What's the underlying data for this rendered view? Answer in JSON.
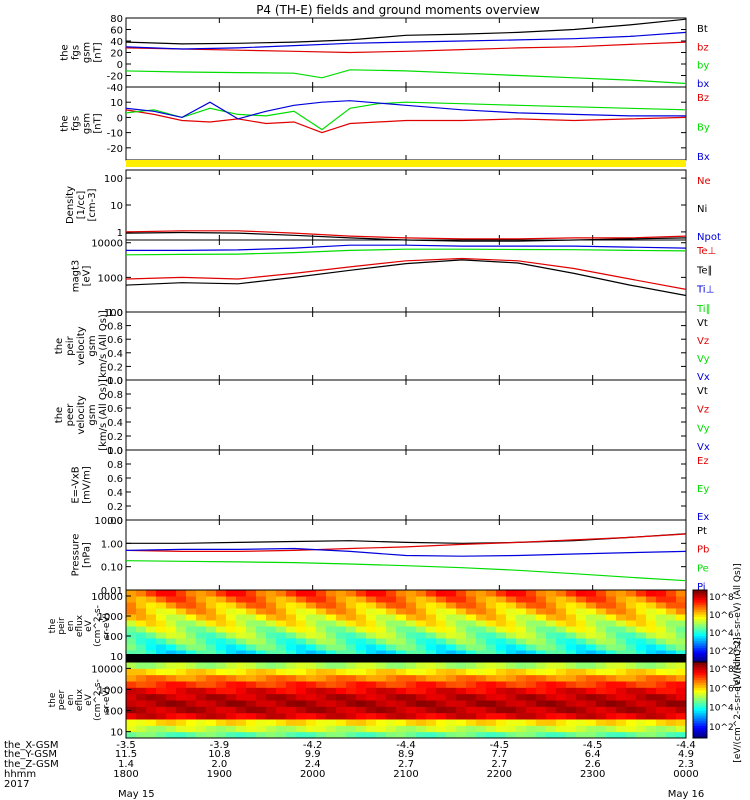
{
  "title": "P4 (TH-E) fields and ground moments overview",
  "colors": {
    "black": "#000000",
    "red": "#e00000",
    "green": "#00dd00",
    "blue": "#0000dd",
    "yellow": "#ffee00"
  },
  "chart_data": {
    "type": "line",
    "x_ticks": [
      "1800",
      "1900",
      "2000",
      "2100",
      "2200",
      "2300",
      "0000"
    ],
    "panels": [
      {
        "id": "fgs-gsm",
        "ylabel": [
          "the",
          "fgs",
          "gsm",
          "[nT]"
        ],
        "yscale": "linear",
        "ylim": [
          -40,
          80
        ],
        "yticks": [
          "80",
          "60",
          "40",
          "20",
          "0",
          "-20",
          "-40"
        ],
        "legend": [
          "Bt",
          "bz",
          "by",
          "bx"
        ],
        "legend_colors": [
          "black",
          "red",
          "green",
          "blue"
        ],
        "series": [
          {
            "name": "Bt",
            "color": "black",
            "x": [
              0,
              0.1,
              0.2,
              0.3,
              0.4,
              0.5,
              0.6,
              0.7,
              0.8,
              0.9,
              1
            ],
            "y": [
              38,
              35,
              36,
              38,
              42,
              50,
              52,
              55,
              60,
              68,
              78
            ]
          },
          {
            "name": "bz",
            "color": "red",
            "x": [
              0,
              0.1,
              0.2,
              0.3,
              0.4,
              0.5,
              0.6,
              0.7,
              0.8,
              0.9,
              1
            ],
            "y": [
              28,
              26,
              24,
              22,
              20,
              22,
              25,
              28,
              30,
              34,
              38
            ]
          },
          {
            "name": "by",
            "color": "green",
            "x": [
              0,
              0.1,
              0.2,
              0.3,
              0.35,
              0.4,
              0.5,
              0.6,
              0.7,
              0.8,
              0.9,
              1
            ],
            "y": [
              -12,
              -14,
              -15,
              -16,
              -24,
              -10,
              -12,
              -16,
              -20,
              -24,
              -28,
              -34
            ]
          },
          {
            "name": "bx",
            "color": "blue",
            "x": [
              0,
              0.1,
              0.2,
              0.3,
              0.4,
              0.5,
              0.6,
              0.7,
              0.8,
              0.9,
              1
            ],
            "y": [
              30,
              26,
              28,
              32,
              36,
              38,
              40,
              42,
              44,
              48,
              55
            ]
          }
        ]
      },
      {
        "id": "fgs-gsm-2",
        "ylabel": [
          "the",
          "fgs",
          "gsm",
          "[nT]"
        ],
        "yscale": "linear",
        "ylim": [
          -28,
          20
        ],
        "yticks": [
          "10",
          "0",
          "-10",
          "-20"
        ],
        "legend": [
          "Bz",
          "By",
          "Bx"
        ],
        "legend_colors": [
          "red",
          "green",
          "blue"
        ],
        "series": [
          {
            "name": "Bz",
            "color": "red",
            "x": [
              0,
              0.05,
              0.1,
              0.15,
              0.2,
              0.25,
              0.3,
              0.35,
              0.4,
              0.5,
              0.6,
              0.7,
              0.8,
              0.9,
              1
            ],
            "y": [
              5,
              2,
              -2,
              -3,
              -1,
              -4,
              -3,
              -10,
              -4,
              -2,
              -2,
              -1,
              -2,
              -1,
              0
            ]
          },
          {
            "name": "By",
            "color": "green",
            "x": [
              0,
              0.05,
              0.1,
              0.15,
              0.2,
              0.25,
              0.3,
              0.35,
              0.4,
              0.45,
              0.5,
              0.6,
              0.7,
              0.8,
              0.9,
              1
            ],
            "y": [
              3,
              5,
              0,
              6,
              2,
              1,
              4,
              -8,
              6,
              9,
              10,
              9,
              8,
              7,
              6,
              5
            ]
          },
          {
            "name": "Bx",
            "color": "blue",
            "x": [
              0,
              0.05,
              0.1,
              0.15,
              0.2,
              0.25,
              0.3,
              0.35,
              0.4,
              0.5,
              0.6,
              0.7,
              0.8,
              0.9,
              1
            ],
            "y": [
              6,
              4,
              0,
              10,
              -1,
              4,
              8,
              10,
              11,
              8,
              5,
              3,
              2,
              1,
              1
            ]
          }
        ]
      },
      {
        "id": "density",
        "ylabel": [
          "Density",
          "[1/cc]",
          "[cm-3]"
        ],
        "yscale": "log",
        "ylim": [
          0.5,
          200
        ],
        "yticks": [
          "100",
          "10",
          "1"
        ],
        "legend": [
          "Ne",
          "Ni",
          "Npot"
        ],
        "legend_colors": [
          "red",
          "black",
          "blue"
        ],
        "series": [
          {
            "name": "Ne",
            "color": "red",
            "x": [
              0,
              0.1,
              0.2,
              0.3,
              0.4,
              0.5,
              0.6,
              0.7,
              0.8,
              0.9,
              1
            ],
            "y": [
              1.0,
              1.1,
              1.1,
              0.9,
              0.7,
              0.6,
              0.55,
              0.55,
              0.6,
              0.6,
              0.7
            ]
          },
          {
            "name": "Ni",
            "color": "black",
            "x": [
              0,
              0.1,
              0.2,
              0.3,
              0.4,
              0.5,
              0.6,
              0.7,
              0.8,
              0.9,
              1
            ],
            "y": [
              0.9,
              0.95,
              0.9,
              0.75,
              0.6,
              0.5,
              0.45,
              0.45,
              0.5,
              0.55,
              0.6
            ]
          }
        ]
      },
      {
        "id": "temperature",
        "ylabel": [
          "magt3",
          "[eV]"
        ],
        "yscale": "log",
        "ylim": [
          100,
          12000
        ],
        "yticks": [
          "10000",
          "1000",
          "100"
        ],
        "legend": [
          "Te⊥",
          "Te∥",
          "Ti⊥",
          "Ti∥"
        ],
        "legend_colors": [
          "red",
          "black",
          "blue",
          "green"
        ],
        "series": [
          {
            "name": "Te⊥",
            "color": "red",
            "x": [
              0,
              0.1,
              0.2,
              0.3,
              0.4,
              0.5,
              0.6,
              0.7,
              0.8,
              0.9,
              1
            ],
            "y": [
              900,
              1000,
              900,
              1300,
              2000,
              3000,
              3500,
              3000,
              1800,
              900,
              450
            ]
          },
          {
            "name": "Te∥",
            "color": "black",
            "x": [
              0,
              0.1,
              0.2,
              0.3,
              0.4,
              0.5,
              0.6,
              0.7,
              0.8,
              0.9,
              1
            ],
            "y": [
              600,
              700,
              650,
              1000,
              1600,
              2500,
              3200,
              2600,
              1300,
              600,
              300
            ]
          },
          {
            "name": "Ti⊥",
            "color": "blue",
            "x": [
              0,
              0.1,
              0.2,
              0.3,
              0.4,
              0.5,
              0.6,
              0.7,
              0.8,
              0.9,
              1
            ],
            "y": [
              6000,
              6000,
              6200,
              7000,
              8500,
              8500,
              8000,
              8000,
              8000,
              7500,
              7000
            ]
          },
          {
            "name": "Ti∥",
            "color": "green",
            "x": [
              0,
              0.1,
              0.2,
              0.3,
              0.4,
              0.5,
              0.6,
              0.7,
              0.8,
              0.9,
              1
            ],
            "y": [
              4500,
              4600,
              4700,
              5200,
              6000,
              6500,
              6500,
              6400,
              6300,
              6000,
              5800
            ]
          }
        ]
      },
      {
        "id": "peir-velocity",
        "ylabel": [
          "the",
          "peir",
          "velocity",
          "gsm",
          "[km/s (All Qs)]"
        ],
        "yscale": "linear",
        "ylim": [
          0,
          1
        ],
        "yticks": [
          "1.0",
          "0.8",
          "0.6",
          "0.4",
          "0.2",
          "0.0"
        ],
        "legend": [
          "Vt",
          "Vz",
          "Vy",
          "Vx"
        ],
        "legend_colors": [
          "black",
          "red",
          "green",
          "blue"
        ],
        "series": []
      },
      {
        "id": "peer-velocity",
        "ylabel": [
          "the",
          "peer",
          "velocity",
          "gsm",
          "[km/s (All Qs)]"
        ],
        "yscale": "linear",
        "ylim": [
          0,
          1
        ],
        "yticks": [
          "1.0",
          "0.8",
          "0.6",
          "0.4",
          "0.2",
          "0.0"
        ],
        "legend": [
          "Vt",
          "Vz",
          "Vy",
          "Vx"
        ],
        "legend_colors": [
          "black",
          "red",
          "green",
          "blue"
        ],
        "series": []
      },
      {
        "id": "e-field",
        "ylabel": [
          "E=-VxB",
          "[mV/m]"
        ],
        "yscale": "linear",
        "ylim": [
          0,
          1
        ],
        "yticks": [
          "1.0",
          "0.8",
          "0.6",
          "0.4",
          "0.2",
          "0.0"
        ],
        "legend": [
          "Ez",
          "Ey",
          "Ex"
        ],
        "legend_colors": [
          "red",
          "green",
          "blue"
        ],
        "series": []
      },
      {
        "id": "pressure",
        "ylabel": [
          "Pressure",
          "[nPa]"
        ],
        "yscale": "log",
        "ylim": [
          0.01,
          10
        ],
        "yticks": [
          "10.00",
          "1.00",
          "0.10",
          "0.01"
        ],
        "legend": [
          "Pt",
          "Pb",
          "Pe",
          "Pi"
        ],
        "legend_colors": [
          "black",
          "red",
          "green",
          "blue"
        ],
        "series": [
          {
            "name": "Pt",
            "color": "black",
            "x": [
              0,
              0.1,
              0.2,
              0.3,
              0.4,
              0.5,
              0.6,
              0.7,
              0.8,
              0.9,
              1
            ],
            "y": [
              1.0,
              1.0,
              1.1,
              1.2,
              1.3,
              1.1,
              1.0,
              1.1,
              1.3,
              1.8,
              2.6
            ]
          },
          {
            "name": "Pb",
            "color": "red",
            "x": [
              0,
              0.1,
              0.2,
              0.3,
              0.4,
              0.5,
              0.6,
              0.7,
              0.8,
              0.9,
              1
            ],
            "y": [
              0.5,
              0.45,
              0.45,
              0.5,
              0.6,
              0.7,
              0.9,
              1.1,
              1.4,
              1.8,
              2.5
            ]
          },
          {
            "name": "Pi",
            "color": "blue",
            "x": [
              0,
              0.1,
              0.2,
              0.3,
              0.4,
              0.5,
              0.6,
              0.7,
              0.8,
              0.9,
              1
            ],
            "y": [
              0.5,
              0.55,
              0.55,
              0.6,
              0.45,
              0.3,
              0.28,
              0.3,
              0.35,
              0.4,
              0.45
            ]
          },
          {
            "name": "Pe",
            "color": "green",
            "x": [
              0,
              0.1,
              0.2,
              0.3,
              0.4,
              0.5,
              0.6,
              0.7,
              0.8,
              0.9,
              1
            ],
            "y": [
              0.18,
              0.17,
              0.16,
              0.15,
              0.13,
              0.11,
              0.09,
              0.07,
              0.05,
              0.035,
              0.025
            ]
          }
        ]
      }
    ],
    "spectrograms": [
      {
        "id": "peir-eflux",
        "ylabel": [
          "the",
          "peir",
          "en",
          "eflux",
          "eV",
          "(cm^2-s-",
          "sr-eV)"
        ],
        "yscale": "log",
        "ylim": [
          5,
          20000
        ],
        "yticks": [
          "10000",
          "1000",
          "100",
          "10"
        ],
        "colorbar_ticks": [
          "10^8",
          "10^6",
          "10^4",
          "10^2"
        ],
        "colorbar_label": "[eV/(cm^2-s-sr-eV) (All Qs)]"
      },
      {
        "id": "peer-eflux",
        "ylabel": [
          "the",
          "peer",
          "en",
          "eflux",
          "eV",
          "(cm^2-s-",
          "sr-eV)"
        ],
        "yscale": "log",
        "ylim": [
          5,
          20000
        ],
        "yticks": [
          "10000",
          "1000",
          "100",
          "10"
        ],
        "colorbar_ticks": [
          "10^8",
          "10^6",
          "10^4",
          "10^2"
        ],
        "colorbar_label": "[eV/(cm^2-s-sr-eV) (All Qs)]"
      }
    ]
  },
  "footer": {
    "row_labels": [
      "the_X-GSM",
      "the_Y-GSM",
      "the_Z-GSM",
      "hhmm",
      "2017"
    ],
    "x_gsm": [
      "-3.5",
      "-3.9",
      "-4.2",
      "-4.4",
      "-4.5",
      "-4.5",
      "-4.4"
    ],
    "y_gsm": [
      "11.5",
      "10.8",
      "9.9",
      "8.9",
      "7.7",
      "6.4",
      "4.9"
    ],
    "z_gsm": [
      "1.4",
      "2.0",
      "2.4",
      "2.7",
      "2.7",
      "2.6",
      "2.3"
    ],
    "hhmm": [
      "1800",
      "1900",
      "2000",
      "2100",
      "2200",
      "2300",
      "0000"
    ],
    "dates": [
      "May 15",
      "May 16"
    ]
  }
}
